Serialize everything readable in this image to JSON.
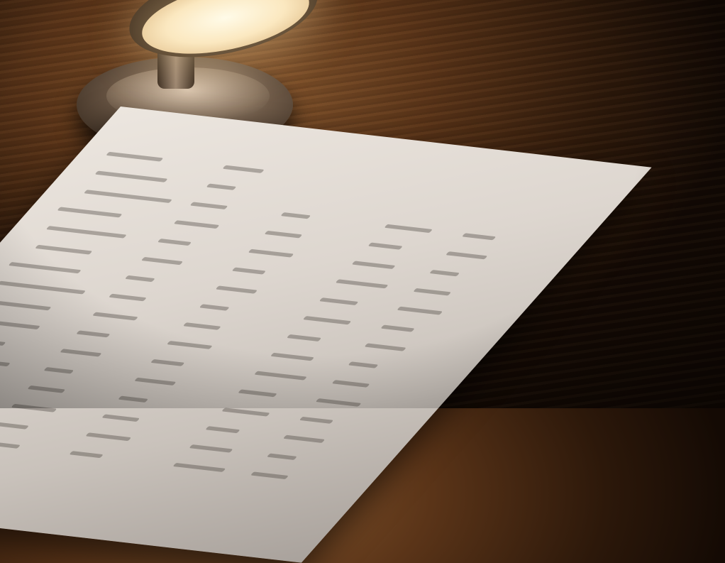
{
  "scene": {
    "subject": "document-on-desk",
    "colors": {
      "wood": "#5a3418",
      "paper": "#e4ddd6",
      "lamp_light": "#fff5dc",
      "highlight_cell": "#8a8580"
    }
  }
}
